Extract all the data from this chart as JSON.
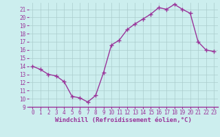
{
  "x": [
    0,
    1,
    2,
    3,
    4,
    5,
    6,
    7,
    8,
    9,
    10,
    11,
    12,
    13,
    14,
    15,
    16,
    17,
    18,
    19,
    20,
    21,
    22,
    23
  ],
  "y": [
    14.0,
    13.6,
    13.0,
    12.8,
    12.1,
    10.3,
    10.1,
    9.6,
    10.4,
    13.2,
    16.6,
    17.2,
    18.5,
    19.2,
    19.8,
    20.4,
    21.2,
    21.0,
    21.6,
    21.0,
    20.5,
    17.0,
    16.0,
    15.8
  ],
  "line_color": "#993399",
  "marker": "+",
  "marker_size": 4,
  "linewidth": 1.0,
  "xlabel": "Windchill (Refroidissement éolien,°C)",
  "xlabel_fontsize": 6.5,
  "bg_color": "#cceeee",
  "grid_color": "#aacccc",
  "tick_color": "#993399",
  "label_color": "#993399",
  "ylim": [
    9,
    21.8
  ],
  "yticks": [
    9,
    10,
    11,
    12,
    13,
    14,
    15,
    16,
    17,
    18,
    19,
    20,
    21
  ],
  "xticks": [
    0,
    1,
    2,
    3,
    4,
    5,
    6,
    7,
    8,
    9,
    10,
    11,
    12,
    13,
    14,
    15,
    16,
    17,
    18,
    19,
    20,
    21,
    22,
    23
  ],
  "tick_fontsize": 5.5,
  "ylabel_fontsize": 6.5
}
